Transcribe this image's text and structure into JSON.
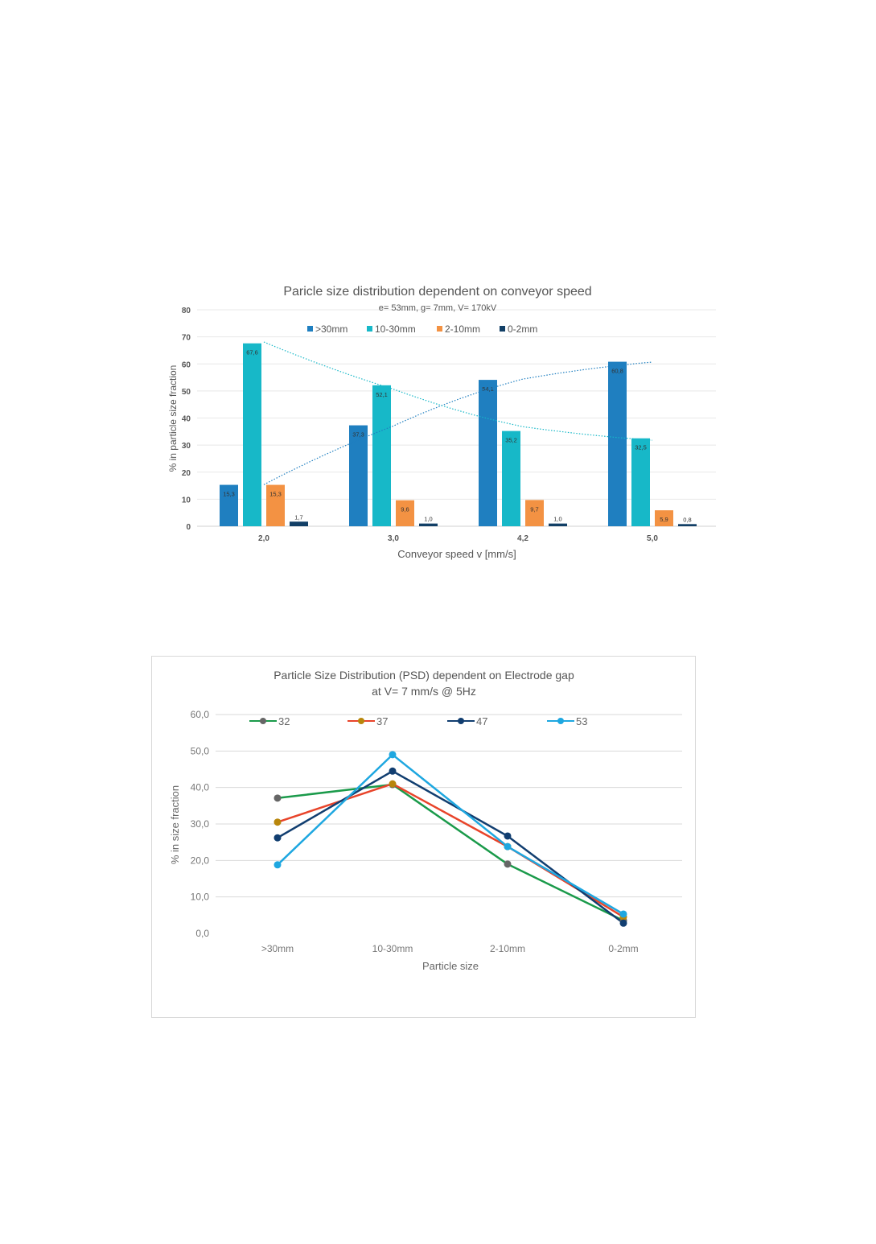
{
  "chart_data": [
    {
      "type": "bar",
      "title": "Paricle size distribution dependent on conveyor speed",
      "subtitle": "e= 53mm, g= 7mm,  V= 170kV",
      "xlabel": "Conveyor speed v [mm/s]",
      "ylabel": "% in particle size fraction",
      "ylim": [
        0,
        80
      ],
      "yticks": [
        "0",
        "10",
        "20",
        "30",
        "40",
        "50",
        "60",
        "70",
        "80"
      ],
      "categories": [
        "2,0",
        "3,0",
        "4,2",
        "5,0"
      ],
      "legend_position": "top",
      "grid": true,
      "series": [
        {
          "name": ">30mm",
          "color": "#1f7fc0",
          "values": [
            15.3,
            37.3,
            54.1,
            60.8
          ],
          "labels": [
            "15,3",
            "37,3",
            "54,1",
            "60,8"
          ]
        },
        {
          "name": "10-30mm",
          "color": "#17b8c8",
          "values": [
            67.6,
            52.1,
            35.2,
            32.5
          ],
          "labels": [
            "67,6",
            "52,1",
            "35,2",
            "32,5"
          ]
        },
        {
          "name": "2-10mm",
          "color": "#f39243",
          "values": [
            15.3,
            9.6,
            9.7,
            5.9
          ],
          "labels": [
            "15,3",
            "9,6",
            "9,7",
            "5,9"
          ]
        },
        {
          "name": "0-2mm",
          "color": "#123f66",
          "values": [
            1.7,
            1.0,
            1.0,
            0.8
          ],
          "labels": [
            "1,7",
            "1,0",
            "1,0",
            "0,8"
          ]
        }
      ],
      "trendlines": [
        {
          "series": ">30mm",
          "type": "polynomial",
          "style": "dotted"
        },
        {
          "series": "10-30mm",
          "type": "polynomial",
          "style": "dotted"
        }
      ]
    },
    {
      "type": "line",
      "title": "Particle Size Distribution (PSD) dependent on Electrode gap",
      "subtitle": "at V= 7 mm/s @ 5Hz",
      "xlabel": "Particle size",
      "ylabel": "% in size fraction",
      "ylim": [
        0,
        60
      ],
      "yticks": [
        "0,0",
        "10,0",
        "20,0",
        "30,0",
        "40,0",
        "50,0",
        "60,0"
      ],
      "categories": [
        ">30mm",
        "10-30mm",
        "2-10mm",
        "0-2mm"
      ],
      "legend_position": "top",
      "grid": true,
      "series": [
        {
          "name": "32",
          "color": "#1a9a4a",
          "marker": "#666666",
          "values": [
            37.1,
            40.8,
            19.0,
            3.5
          ]
        },
        {
          "name": "37",
          "color": "#e8442a",
          "marker": "#b8860b",
          "values": [
            30.5,
            41.0,
            23.8,
            4.5
          ]
        },
        {
          "name": "47",
          "color": "#113e70",
          "marker": "#113e70",
          "values": [
            26.2,
            44.5,
            26.7,
            2.8
          ]
        },
        {
          "name": "53",
          "color": "#1ea7e0",
          "marker": "#1ea7e0",
          "values": [
            18.8,
            49.0,
            23.8,
            5.3
          ]
        }
      ]
    }
  ]
}
